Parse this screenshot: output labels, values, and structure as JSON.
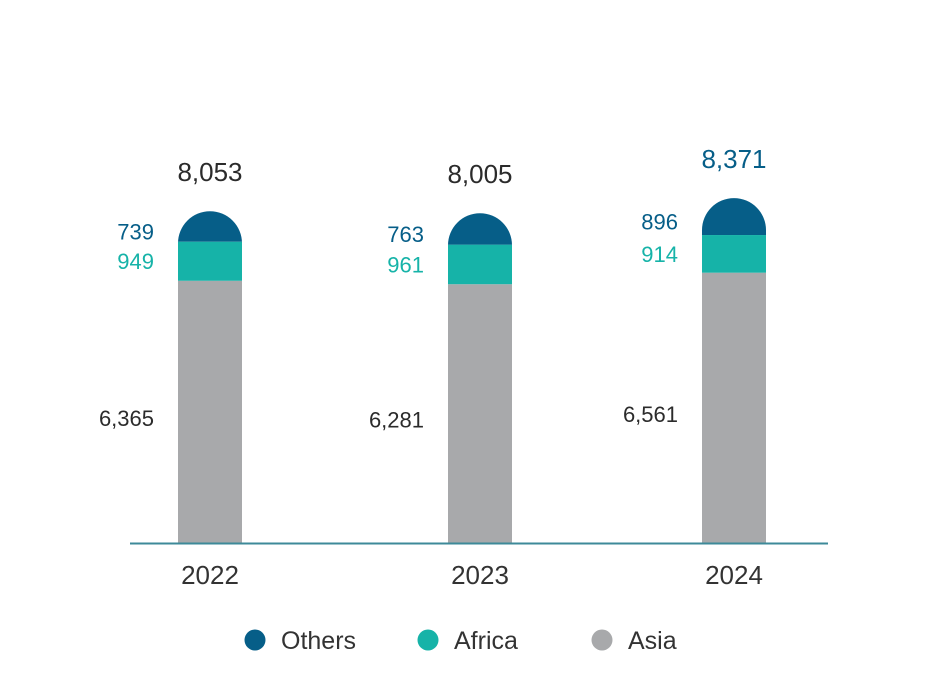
{
  "chart_data": {
    "type": "bar",
    "stacked": true,
    "categories": [
      "2022",
      "2023",
      "2024"
    ],
    "series": [
      {
        "name": "Asia",
        "values": [
          6365,
          6281,
          6561
        ]
      },
      {
        "name": "Africa",
        "values": [
          949,
          961,
          914
        ]
      },
      {
        "name": "Others",
        "values": [
          739,
          763,
          896
        ]
      }
    ],
    "totals": [
      "8,053",
      "8,005",
      "8,371"
    ],
    "segment_labels": [
      [
        "6,365",
        "949",
        "739"
      ],
      [
        "6,281",
        "961",
        "763"
      ],
      [
        "6,561",
        "914",
        "896"
      ]
    ],
    "legend": [
      "Others",
      "Africa",
      "Asia"
    ],
    "legend_position": "bottom",
    "colors": {
      "Others": "#065E88",
      "Africa": "#16B3A8",
      "Asia": "#A8A9AB",
      "axis": "#3D8A99",
      "total_2022": "#2B2B2B",
      "total_2023": "#2B2B2B",
      "total_2024": "#065E88",
      "asia_label": "#2B2B2B"
    },
    "grid": false,
    "title": "",
    "xlabel": "",
    "ylabel": ""
  }
}
